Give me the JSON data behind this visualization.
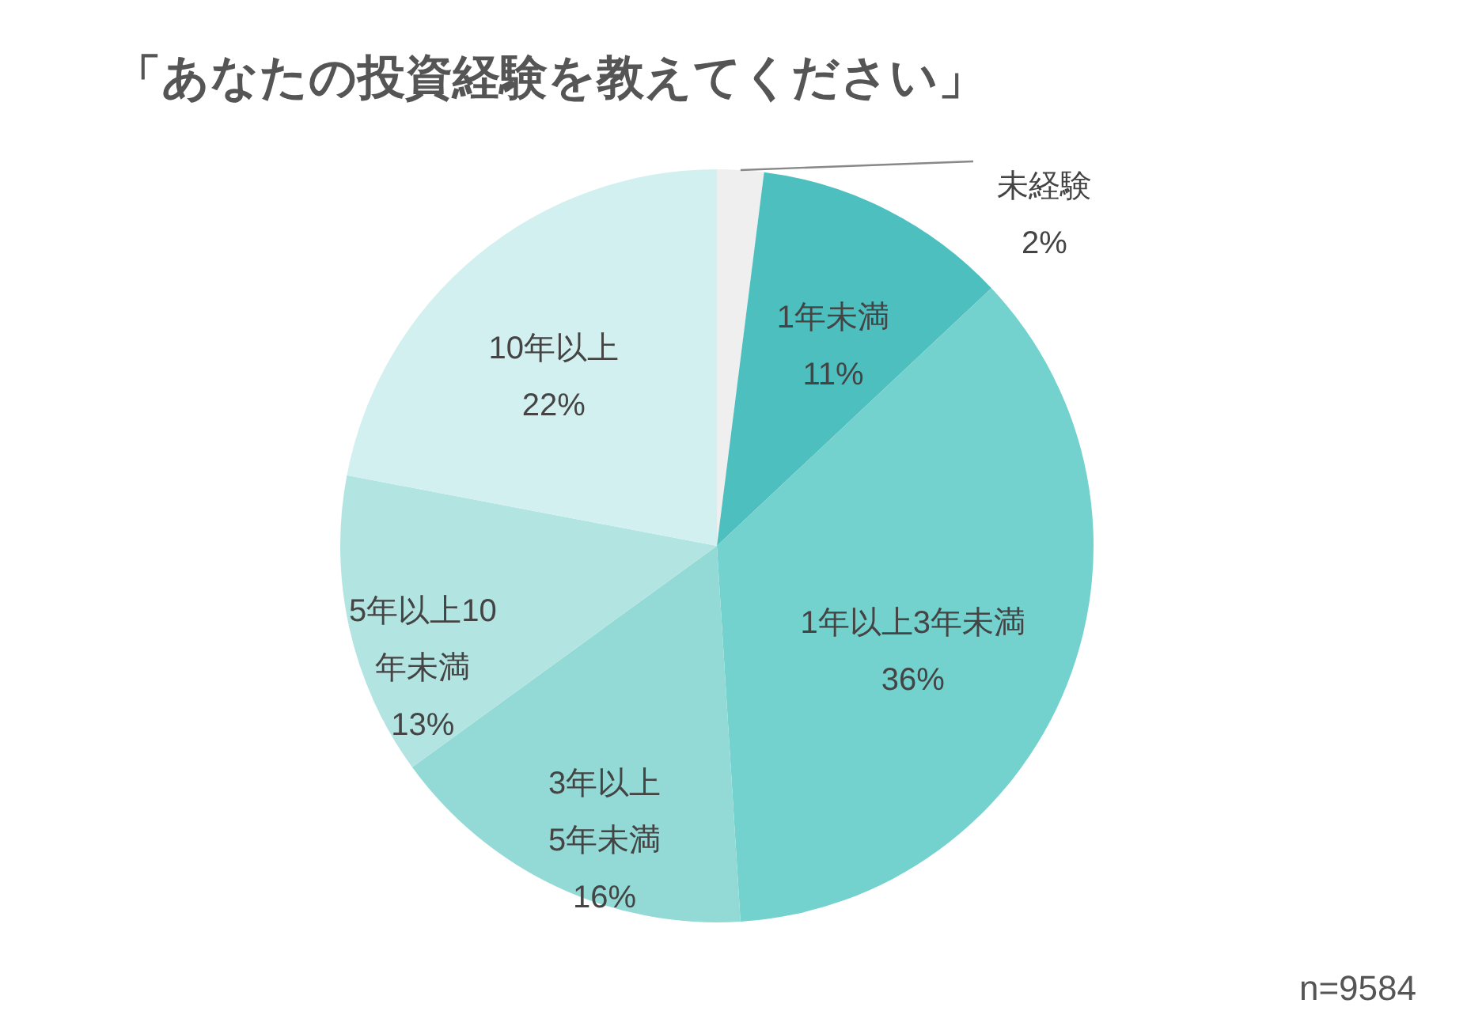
{
  "chart_data": {
    "type": "pie",
    "title": "「あなたの投資経験を教えてください」",
    "categories": [
      "未経験",
      "1年未満",
      "1年以上3年未満",
      "3年以上5年未満",
      "5年以上10年未満",
      "10年以上"
    ],
    "values": [
      2,
      11,
      36,
      16,
      13,
      22
    ],
    "colors": [
      "#efefef",
      "#4dbfbf",
      "#73d1ce",
      "#93dad6",
      "#b2e4e2",
      "#d3f0f0"
    ],
    "value_labels": [
      "2%",
      "11%",
      "36%",
      "16%",
      "13%",
      "22%"
    ],
    "annotations": [
      "n=9584"
    ]
  }
}
